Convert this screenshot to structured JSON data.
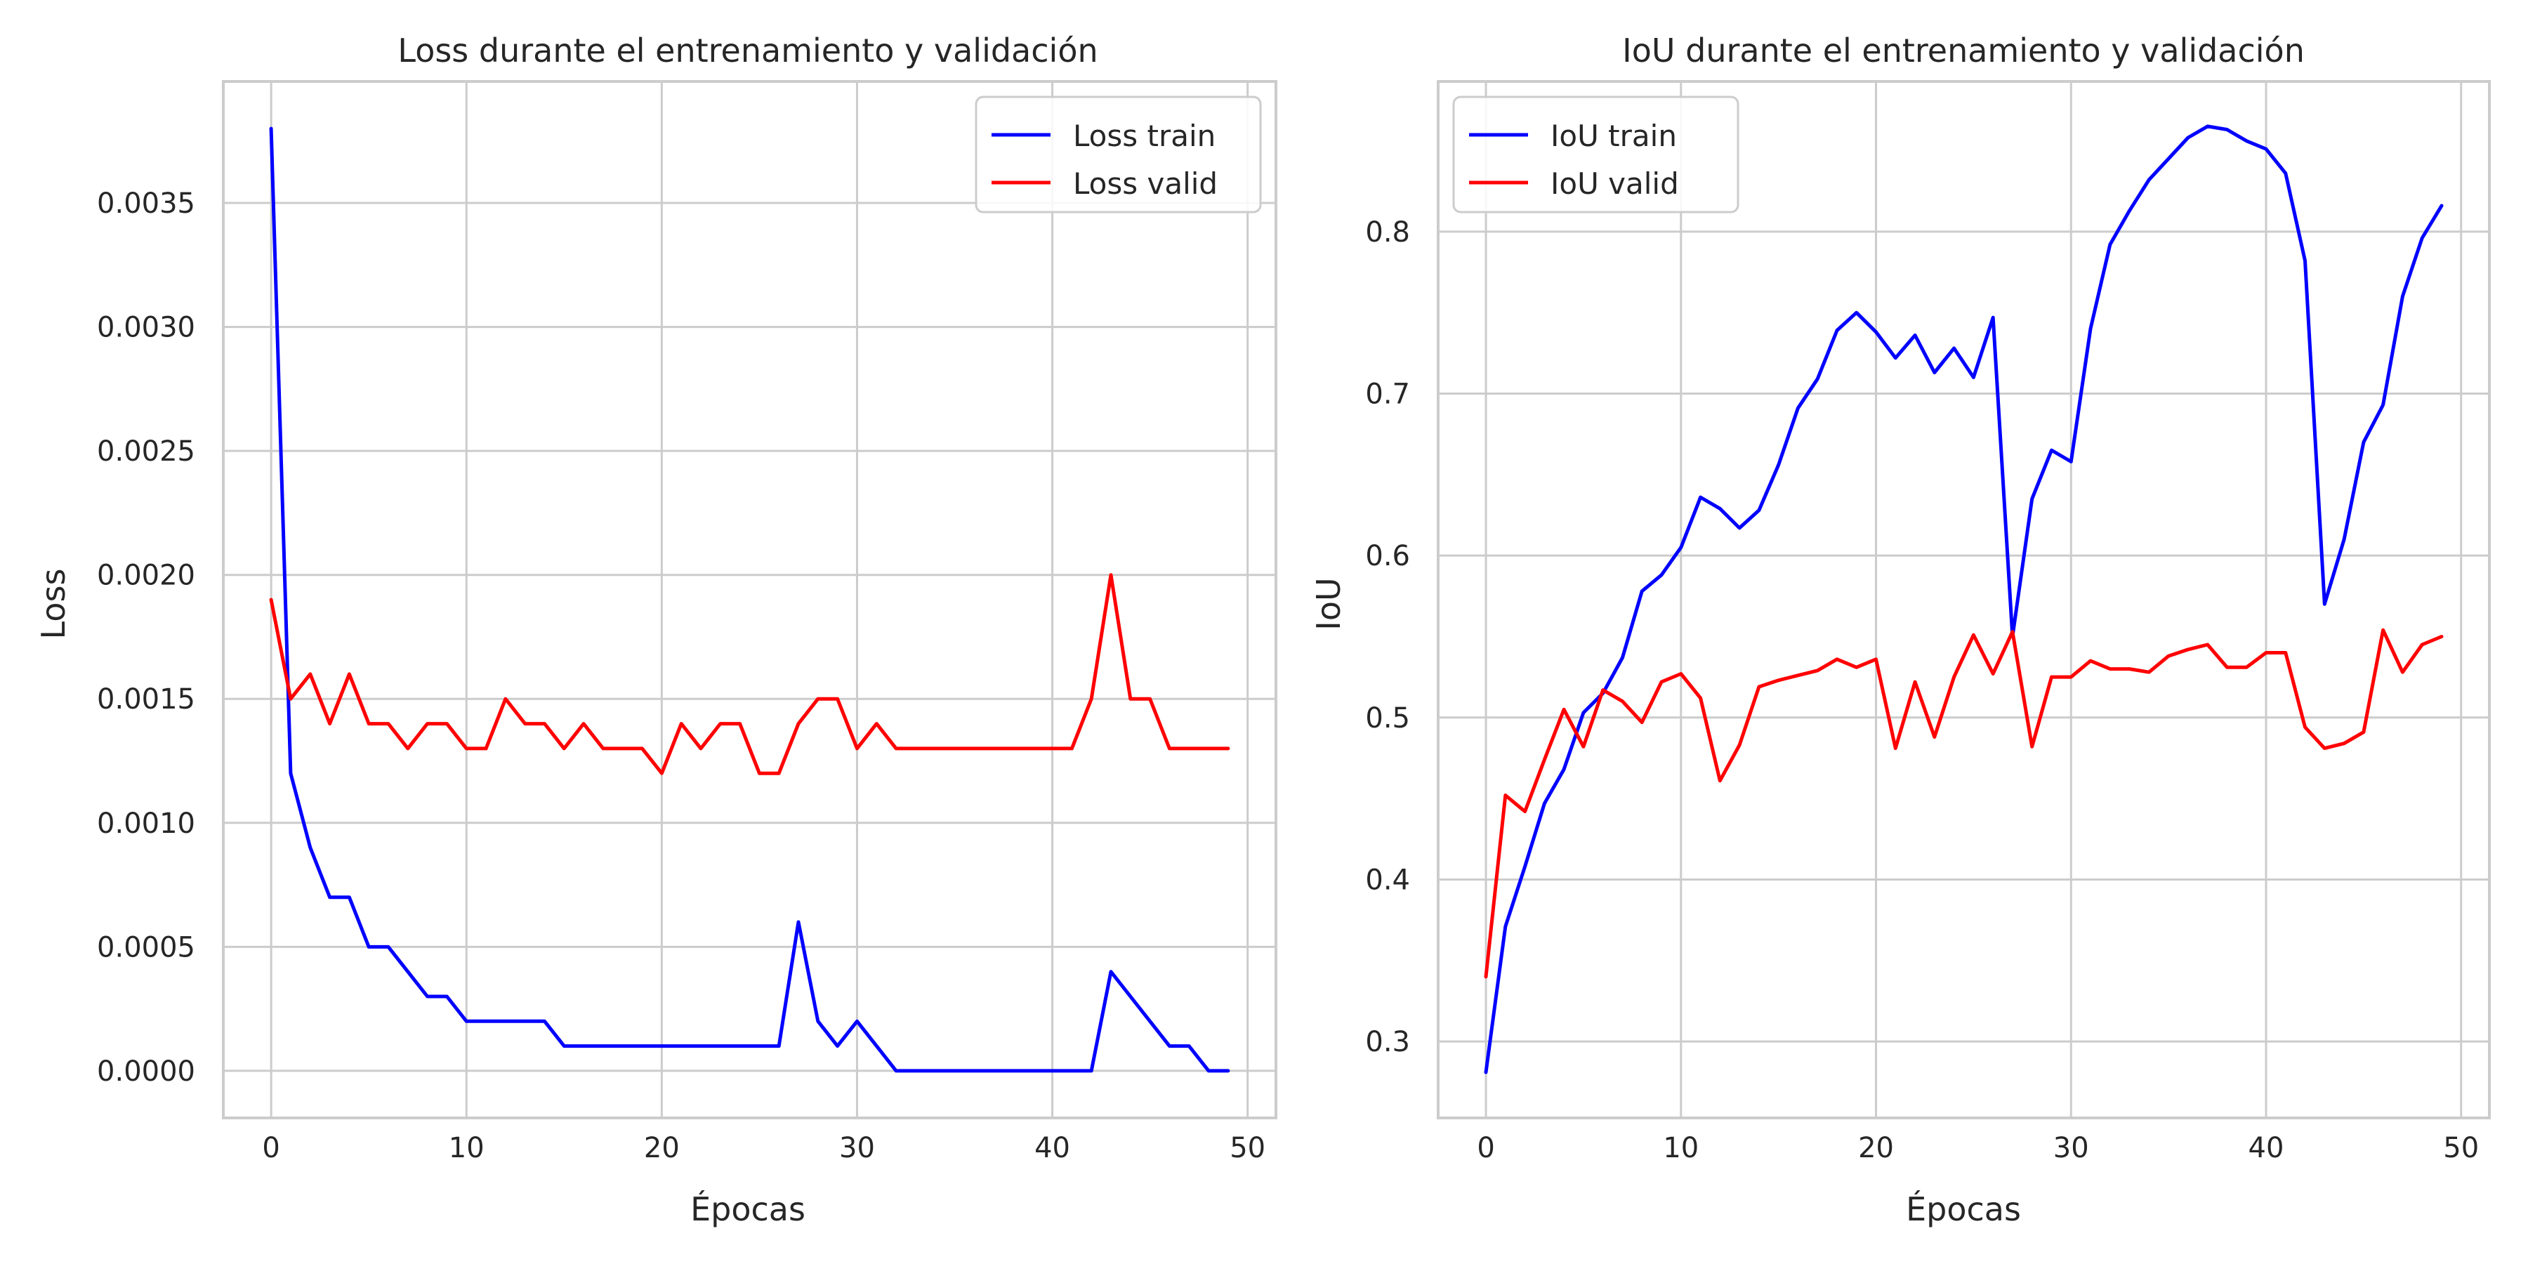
{
  "chart_data": [
    {
      "type": "line",
      "title": "Loss durante el entrenamiento y validación",
      "xlabel": "Épocas",
      "ylabel": "Loss",
      "xlim": [
        -2.45,
        51.45
      ],
      "ylim": [
        -0.00019,
        0.00399
      ],
      "xticks": [
        0,
        10,
        20,
        30,
        40,
        50
      ],
      "yticks": [
        0,
        0.0005,
        0.001,
        0.0015,
        0.002,
        0.0025,
        0.003,
        0.0035
      ],
      "ytick_decimals": 4,
      "grid": true,
      "legend_position": "top-right",
      "x": [
        0,
        1,
        2,
        3,
        4,
        5,
        6,
        7,
        8,
        9,
        10,
        11,
        12,
        13,
        14,
        15,
        16,
        17,
        18,
        19,
        20,
        21,
        22,
        23,
        24,
        25,
        26,
        27,
        28,
        29,
        30,
        31,
        32,
        33,
        34,
        35,
        36,
        37,
        38,
        39,
        40,
        41,
        42,
        43,
        44,
        45,
        46,
        47,
        48,
        49
      ],
      "series": [
        {
          "name": "Loss train",
          "color": "#0000ff",
          "values": [
            0.0038,
            0.0012,
            0.0009,
            0.0007,
            0.0007,
            0.0005,
            0.0005,
            0.0004,
            0.0003,
            0.0003,
            0.0002,
            0.0002,
            0.0002,
            0.0002,
            0.0002,
            0.0001,
            0.0001,
            0.0001,
            0.0001,
            0.0001,
            0.0001,
            0.0001,
            0.0001,
            0.0001,
            0.0001,
            0.0001,
            0.0001,
            0.0006,
            0.0002,
            0.0001,
            0.0002,
            0.0001,
            0.0,
            0.0,
            0.0,
            0.0,
            0.0,
            0.0,
            0.0,
            0.0,
            0.0,
            0.0,
            0.0,
            0.0004,
            0.0003,
            0.0002,
            0.0001,
            0.0001,
            0.0,
            0.0
          ]
        },
        {
          "name": "Loss valid",
          "color": "#ff0000",
          "values": [
            0.0019,
            0.0015,
            0.0016,
            0.0014,
            0.0016,
            0.0014,
            0.0014,
            0.0013,
            0.0014,
            0.0014,
            0.0013,
            0.0013,
            0.0015,
            0.0014,
            0.0014,
            0.0013,
            0.0014,
            0.0013,
            0.0013,
            0.0013,
            0.0012,
            0.0014,
            0.0013,
            0.0014,
            0.0014,
            0.0012,
            0.0012,
            0.0014,
            0.0015,
            0.0015,
            0.0013,
            0.0014,
            0.0013,
            0.0013,
            0.0013,
            0.0013,
            0.0013,
            0.0013,
            0.0013,
            0.0013,
            0.0013,
            0.0013,
            0.0015,
            0.002,
            0.0015,
            0.0015,
            0.0013,
            0.0013,
            0.0013,
            0.0013
          ]
        }
      ]
    },
    {
      "type": "line",
      "title": "IoU durante el entrenamiento y validación",
      "xlabel": "Épocas",
      "ylabel": "IoU",
      "xlim": [
        -2.45,
        51.45
      ],
      "ylim": [
        0.2528,
        0.8927
      ],
      "xticks": [
        0,
        10,
        20,
        30,
        40,
        50
      ],
      "yticks": [
        0.3,
        0.4,
        0.5,
        0.6,
        0.7,
        0.8
      ],
      "ytick_decimals": 1,
      "grid": true,
      "legend_position": "top-left",
      "x": [
        0,
        1,
        2,
        3,
        4,
        5,
        6,
        7,
        8,
        9,
        10,
        11,
        12,
        13,
        14,
        15,
        16,
        17,
        18,
        19,
        20,
        21,
        22,
        23,
        24,
        25,
        26,
        27,
        28,
        29,
        30,
        31,
        32,
        33,
        34,
        35,
        36,
        37,
        38,
        39,
        40,
        41,
        42,
        43,
        44,
        45,
        46,
        47,
        48,
        49
      ],
      "series": [
        {
          "name": "IoU train",
          "color": "#0000ff",
          "values": [
            0.281,
            0.371,
            0.408,
            0.447,
            0.468,
            0.503,
            0.515,
            0.537,
            0.578,
            0.588,
            0.605,
            0.636,
            0.629,
            0.617,
            0.628,
            0.656,
            0.691,
            0.709,
            0.739,
            0.75,
            0.738,
            0.722,
            0.736,
            0.713,
            0.728,
            0.71,
            0.747,
            0.55,
            0.635,
            0.665,
            0.658,
            0.74,
            0.792,
            0.813,
            0.832,
            0.845,
            0.858,
            0.865,
            0.863,
            0.856,
            0.851,
            0.836,
            0.782,
            0.57,
            0.61,
            0.67,
            0.693,
            0.76,
            0.796,
            0.816
          ]
        },
        {
          "name": "IoU valid",
          "color": "#ff0000",
          "values": [
            0.34,
            0.452,
            0.442,
            0.474,
            0.505,
            0.482,
            0.517,
            0.51,
            0.497,
            0.522,
            0.527,
            0.512,
            0.461,
            0.483,
            0.519,
            0.523,
            0.526,
            0.529,
            0.536,
            0.531,
            0.536,
            0.481,
            0.522,
            0.488,
            0.525,
            0.551,
            0.527,
            0.553,
            0.482,
            0.525,
            0.525,
            0.535,
            0.53,
            0.53,
            0.528,
            0.538,
            0.542,
            0.545,
            0.531,
            0.531,
            0.54,
            0.54,
            0.494,
            0.481,
            0.484,
            0.491,
            0.554,
            0.528,
            0.545,
            0.55
          ]
        }
      ]
    }
  ]
}
